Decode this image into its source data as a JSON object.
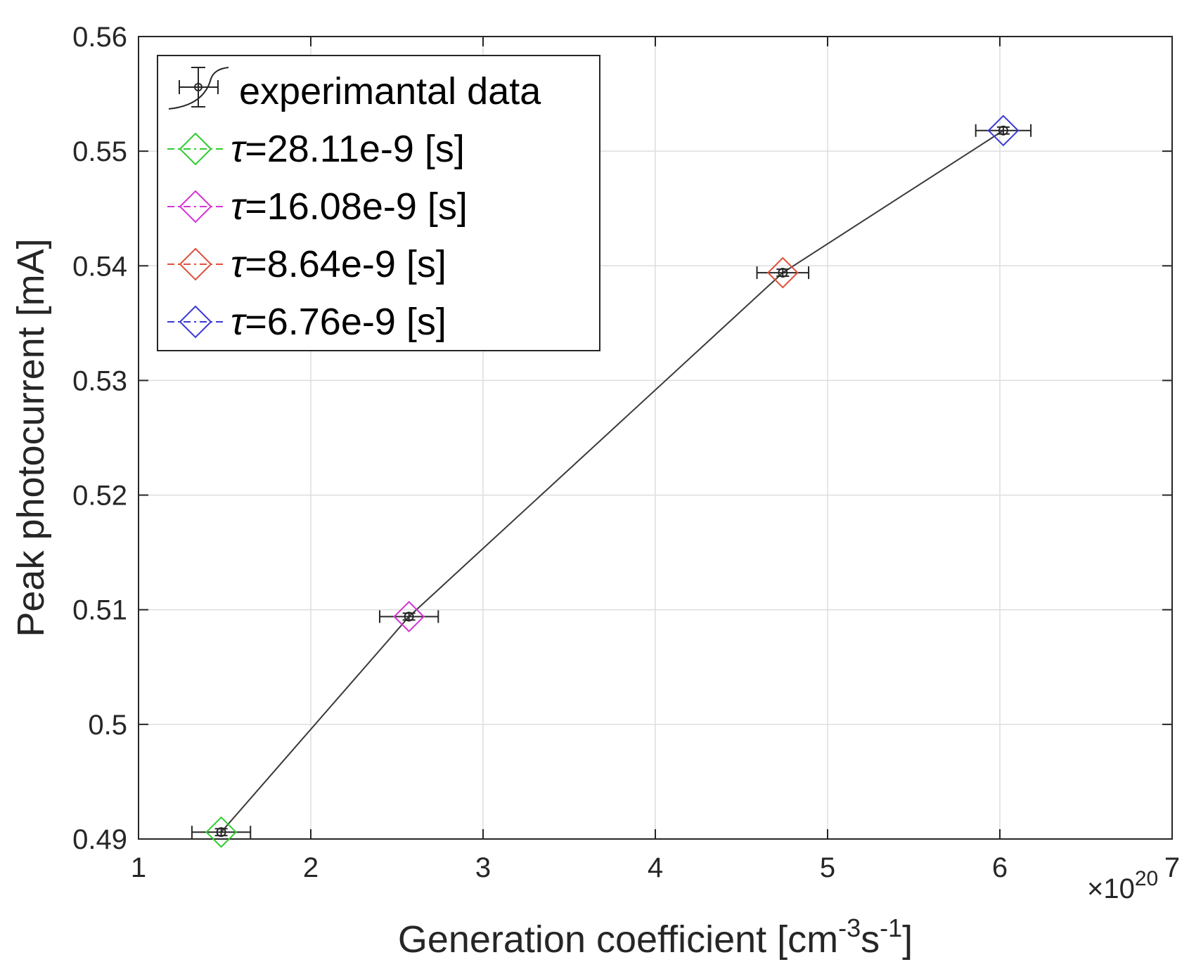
{
  "chart_data": {
    "type": "line",
    "title": "",
    "xlabel": {
      "text": "Generation coefficient [cm",
      "sup1": "-3",
      "mid": "s",
      "sup2": "-1",
      "end": "]"
    },
    "ylabel": "Peak photocurrent [mA]",
    "x_exponent": {
      "base": "×10",
      "power": "20"
    },
    "xlim": [
      1,
      7
    ],
    "ylim": [
      0.49,
      0.56
    ],
    "xticks": [
      1,
      2,
      3,
      4,
      5,
      6,
      7
    ],
    "xtick_labels": [
      "1",
      "2",
      "3",
      "4",
      "5",
      "6",
      "7"
    ],
    "yticks": [
      0.49,
      0.5,
      0.51,
      0.52,
      0.53,
      0.54,
      0.55,
      0.56
    ],
    "ytick_labels": [
      "0.49",
      "0.5",
      "0.51",
      "0.52",
      "0.53",
      "0.54",
      "0.55",
      "0.56"
    ],
    "grid": true,
    "legend_position": "top-left",
    "series": [
      {
        "name": "experimantal data",
        "color": "#000000",
        "x": [
          1.48,
          2.57,
          4.74,
          6.02
        ],
        "y": [
          0.4906,
          0.5094,
          0.5394,
          0.5518
        ],
        "xerr": [
          0.17,
          0.17,
          0.15,
          0.16
        ],
        "yerr": [
          0.0003,
          0.0003,
          0.0003,
          0.0003
        ]
      },
      {
        "name_prefix": "τ",
        "name_rest": "=28.11e-9 [s]",
        "color": "#2ecc2e",
        "x": [
          1.48
        ],
        "y": [
          0.4906
        ]
      },
      {
        "name_prefix": "τ",
        "name_rest": "=16.08e-9 [s]",
        "color": "#d633d6",
        "x": [
          2.57
        ],
        "y": [
          0.5094
        ]
      },
      {
        "name_prefix": "τ",
        "name_rest": "=8.64e-9 [s]",
        "color": "#e0503a",
        "x": [
          4.74
        ],
        "y": [
          0.5394
        ]
      },
      {
        "name_prefix": "τ",
        "name_rest": "=6.76e-9 [s]",
        "color": "#3a3ad6",
        "x": [
          6.02
        ],
        "y": [
          0.5518
        ]
      }
    ]
  }
}
